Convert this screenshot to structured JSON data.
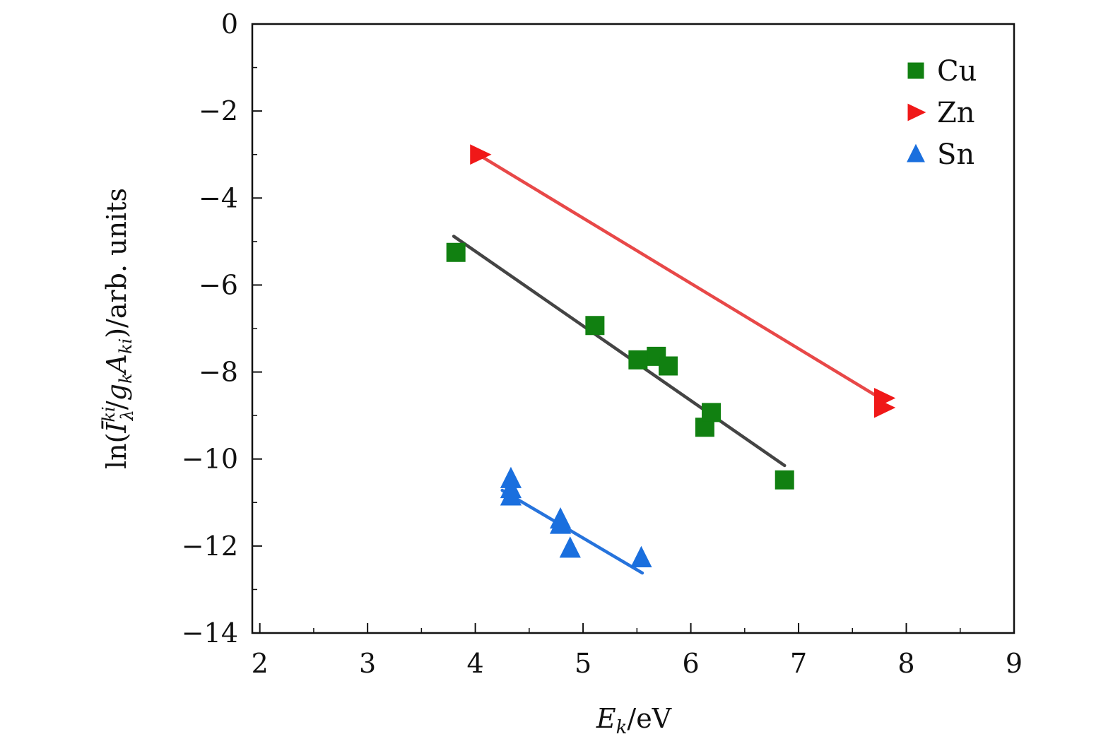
{
  "chart_data": {
    "type": "scatter",
    "xlabel": "E_k/eV",
    "ylabel": "ln(Ī_λ^ki/g_kA_ki)/arb. units",
    "xlim": [
      1.93,
      9
    ],
    "ylim": [
      -14,
      0
    ],
    "x_ticks": [
      "2",
      "3",
      "4",
      "5",
      "6",
      "7",
      "8",
      "9"
    ],
    "y_ticks": [
      "0",
      "−2",
      "−4",
      "−6",
      "−8",
      "−10",
      "−12",
      "−14"
    ],
    "x_tick_values": [
      2,
      3,
      4,
      5,
      6,
      7,
      8,
      9
    ],
    "y_tick_values": [
      0,
      -2,
      -4,
      -6,
      -8,
      -10,
      -12,
      -14
    ],
    "legend_position": "top-right",
    "series": [
      {
        "name": "Cu",
        "marker": "square",
        "color": "#118011",
        "fit_color": "#444444",
        "points": [
          [
            3.82,
            -5.25
          ],
          [
            5.11,
            -6.93
          ],
          [
            5.51,
            -7.72
          ],
          [
            5.68,
            -7.64
          ],
          [
            5.79,
            -7.86
          ],
          [
            6.13,
            -9.27
          ],
          [
            6.19,
            -8.93
          ],
          [
            6.87,
            -10.48
          ]
        ],
        "fit": [
          [
            3.8,
            -4.88
          ],
          [
            6.87,
            -10.15
          ]
        ]
      },
      {
        "name": "Zn",
        "marker": "triangle-right",
        "color": "#f01818",
        "fit_color": "#e84848",
        "points": [
          [
            4.04,
            -3.0
          ],
          [
            7.79,
            -8.6
          ],
          [
            7.79,
            -8.82
          ]
        ],
        "fit": [
          [
            4.04,
            -3.02
          ],
          [
            7.79,
            -8.65
          ]
        ]
      },
      {
        "name": "Sn",
        "marker": "triangle-up",
        "color": "#1a6fde",
        "fit_color": "#2673dc",
        "points": [
          [
            4.33,
            -10.45
          ],
          [
            4.33,
            -10.68
          ],
          [
            4.33,
            -10.85
          ],
          [
            4.79,
            -11.38
          ],
          [
            4.79,
            -11.5
          ],
          [
            4.88,
            -12.05
          ],
          [
            5.54,
            -12.27
          ]
        ],
        "fit": [
          [
            4.25,
            -10.72
          ],
          [
            5.55,
            -12.62
          ]
        ]
      }
    ]
  }
}
